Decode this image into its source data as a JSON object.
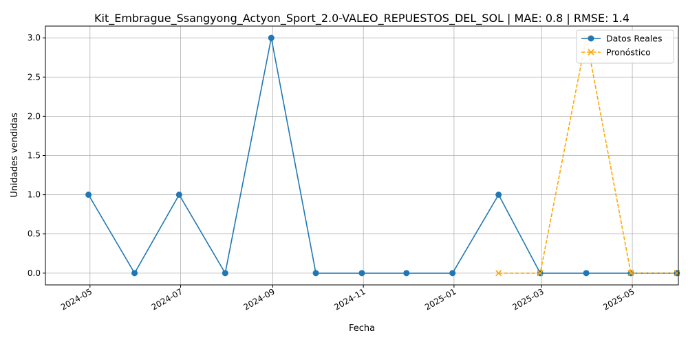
{
  "chart_data": {
    "type": "line",
    "title": "Kit_Embrague_Ssangyong_Actyon_Sport_2.0-VALEO_REPUESTOS_DEL_SOL | MAE: 0.8 | RMSE: 1.4",
    "xlabel": "Fecha",
    "ylabel": "Unidades vendidas",
    "grid": true,
    "legend_position": "upper right",
    "x_axis_type": "date",
    "xlim": [
      "2024-04-01",
      "2025-06-01"
    ],
    "ylim": [
      -0.15,
      3.15
    ],
    "x_ticks": [
      {
        "date": "2024-05-01",
        "label": "2024-05"
      },
      {
        "date": "2024-07-01",
        "label": "2024-07"
      },
      {
        "date": "2024-09-01",
        "label": "2024-09"
      },
      {
        "date": "2024-11-01",
        "label": "2024-11"
      },
      {
        "date": "2025-01-01",
        "label": "2025-01"
      },
      {
        "date": "2025-03-01",
        "label": "2025-03"
      },
      {
        "date": "2025-05-01",
        "label": "2025-05"
      }
    ],
    "y_ticks": [
      {
        "value": 0.0,
        "label": "0.0"
      },
      {
        "value": 0.5,
        "label": "0.5"
      },
      {
        "value": 1.0,
        "label": "1.0"
      },
      {
        "value": 1.5,
        "label": "1.5"
      },
      {
        "value": 2.0,
        "label": "2.0"
      },
      {
        "value": 2.5,
        "label": "2.5"
      },
      {
        "value": 3.0,
        "label": "3.0"
      }
    ],
    "series": [
      {
        "name": "Datos Reales",
        "color": "#1f77b4",
        "style": "solid",
        "marker": "circle",
        "x": [
          "2024-04-30",
          "2024-05-31",
          "2024-06-30",
          "2024-07-31",
          "2024-08-31",
          "2024-09-30",
          "2024-10-31",
          "2024-11-30",
          "2024-12-31",
          "2025-01-31",
          "2025-02-28",
          "2025-03-31",
          "2025-04-30",
          "2025-05-31"
        ],
        "values": [
          1,
          0,
          1,
          0,
          3,
          0,
          0,
          0,
          0,
          1,
          0,
          0,
          0,
          0
        ]
      },
      {
        "name": "Pronóstico",
        "color": "#ffa500",
        "style": "dashed",
        "marker": "x",
        "x": [
          "2025-01-31",
          "2025-02-28",
          "2025-03-31",
          "2025-04-30",
          "2025-05-31"
        ],
        "values": [
          0,
          0,
          3,
          0,
          0
        ]
      }
    ]
  }
}
